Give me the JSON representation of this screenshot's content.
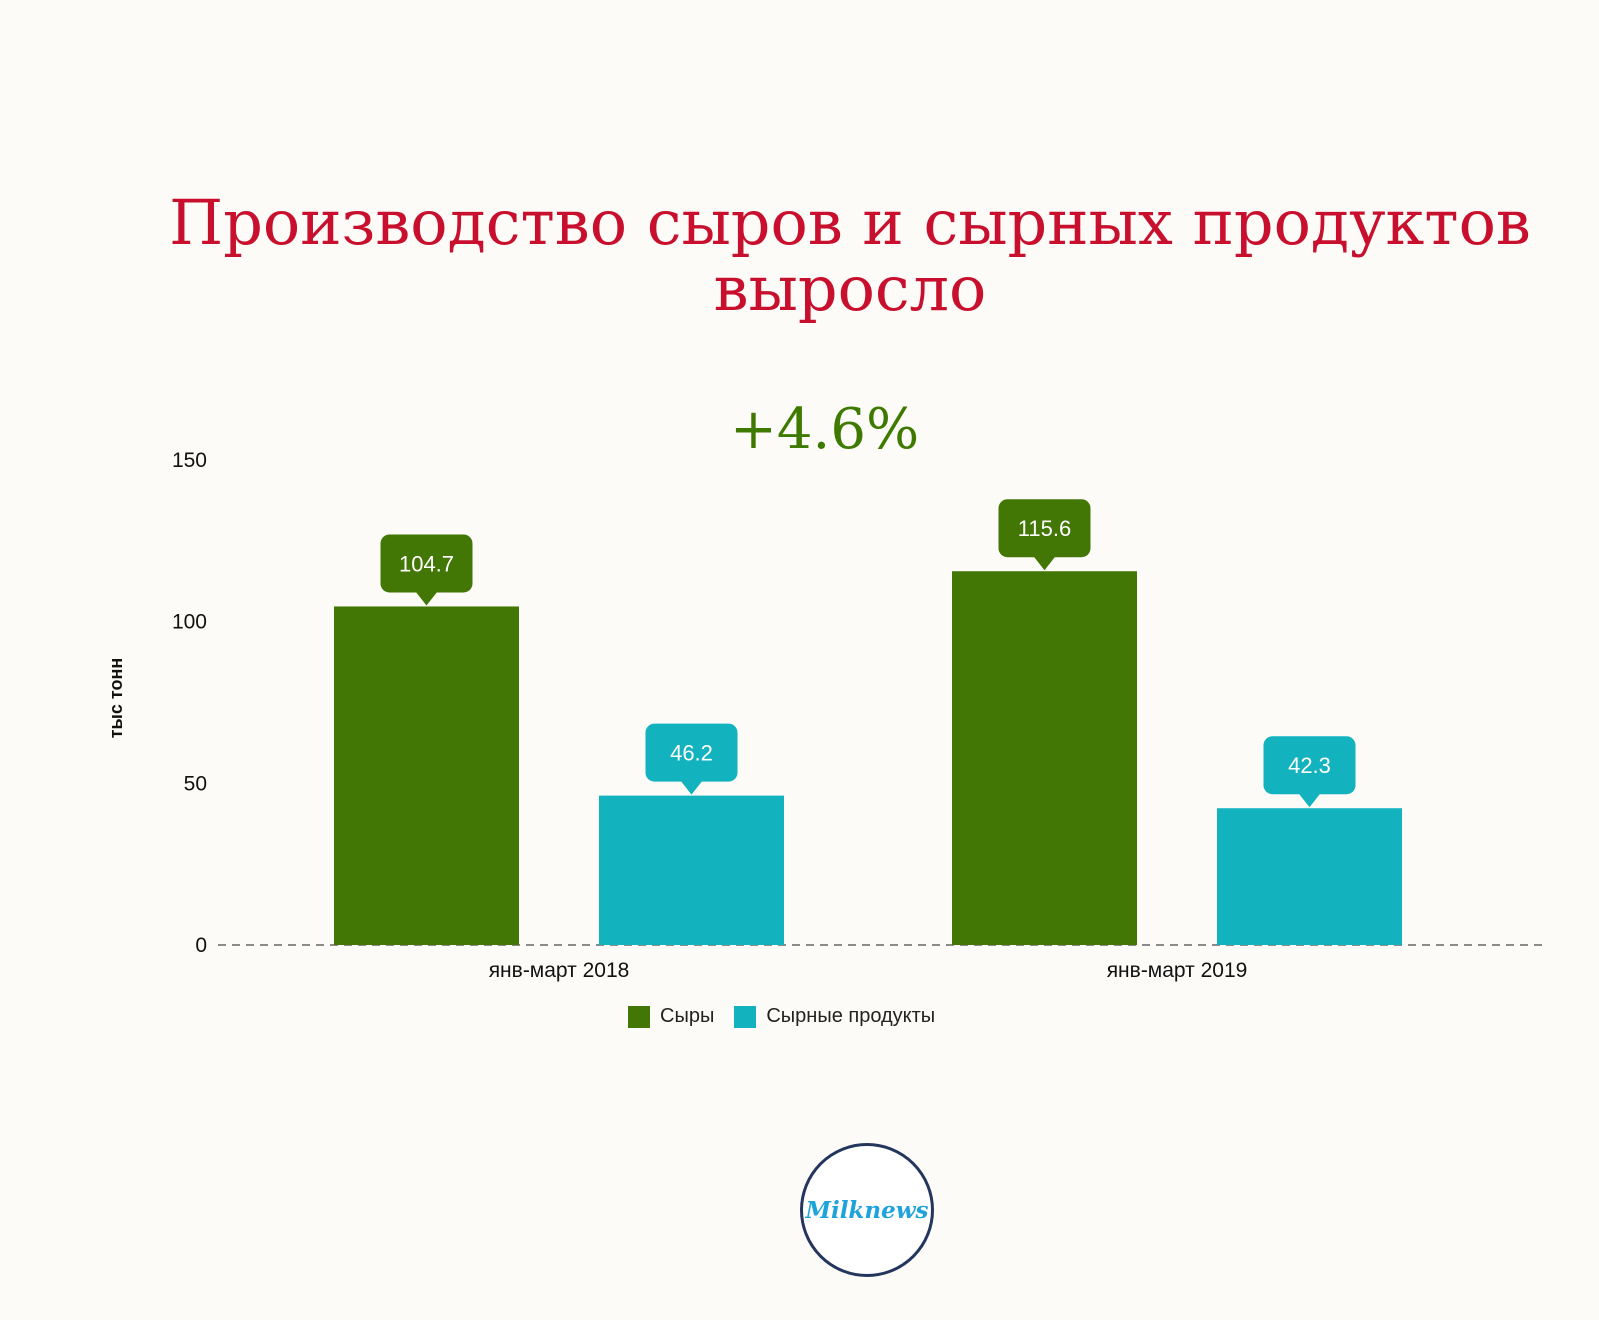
{
  "title_lines": [
    "Производство сыров и сырных продуктов",
    "выросло"
  ],
  "growth_label": "+4.6%",
  "logo_text": "Milknews",
  "colors": {
    "series1": "#427605",
    "series2": "#12b2bf",
    "title": "#c8102e"
  },
  "chart_data": {
    "type": "bar",
    "categories": [
      "янв-март 2018",
      "янв-март 2019"
    ],
    "series": [
      {
        "name": "Сыры",
        "values": [
          104.7,
          115.6
        ]
      },
      {
        "name": "Сырные продукты",
        "values": [
          46.2,
          42.3
        ]
      }
    ],
    "ylabel": "тыс тонн",
    "yticks": [
      0,
      50,
      100,
      150
    ],
    "ylim": [
      0,
      150
    ],
    "grid": false,
    "legend": "bottom-center"
  }
}
